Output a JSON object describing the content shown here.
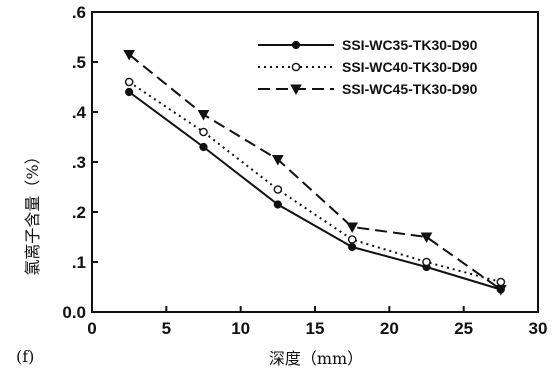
{
  "chart_data": {
    "type": "line",
    "panel_label": "(f)",
    "xlabel": "深度（mm）",
    "ylabel": "氯离子含量（%）",
    "xlim": [
      0,
      30
    ],
    "ylim": [
      0.0,
      0.6
    ],
    "x_ticks": [
      "0",
      "5",
      "10",
      "15",
      "20",
      "25",
      "30"
    ],
    "y_ticks": [
      "0.0",
      ".1",
      ".2",
      ".3",
      ".4",
      ".5",
      ".6"
    ],
    "grid": false,
    "legend_position": "top-right",
    "x": [
      2.5,
      7.5,
      12.5,
      17.5,
      22.5,
      27.5
    ],
    "series": [
      {
        "name": "SSI-WC35-TK30-D90",
        "values": [
          0.44,
          0.33,
          0.215,
          0.13,
          0.09,
          0.045
        ],
        "line_style": "solid",
        "marker": "filled-circle",
        "color": "#111111"
      },
      {
        "name": "SSI-WC40-TK30-D90",
        "values": [
          0.46,
          0.36,
          0.245,
          0.145,
          0.1,
          0.06
        ],
        "line_style": "dotted",
        "marker": "open-circle",
        "color": "#111111"
      },
      {
        "name": "SSI-WC45-TK30-D90",
        "values": [
          0.515,
          0.395,
          0.305,
          0.17,
          0.15,
          0.045
        ],
        "line_style": "dashed",
        "marker": "filled-triangle-down",
        "color": "#111111"
      }
    ]
  }
}
